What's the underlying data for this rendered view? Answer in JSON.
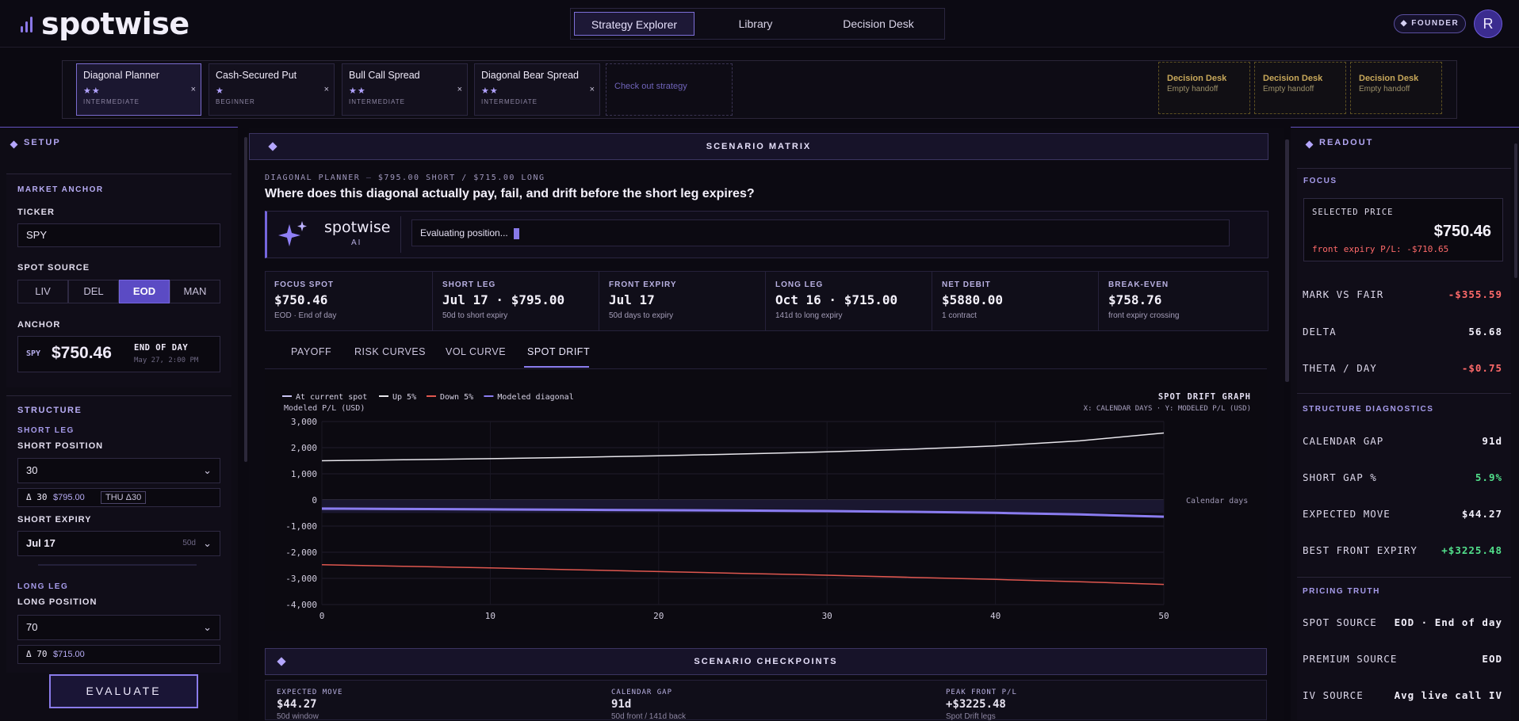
{
  "app": {
    "name": "spotwise"
  },
  "nav": {
    "tabs": [
      "Strategy Explorer",
      "Library",
      "Decision Desk"
    ],
    "active": "Strategy Explorer"
  },
  "account": {
    "badge": "◆ FOUNDER",
    "avatar": "R"
  },
  "strategies": [
    {
      "name": "Diagonal Planner",
      "stars": "★★",
      "level": "INTERMEDIATE",
      "active": true
    },
    {
      "name": "Cash-Secured Put",
      "stars": "★",
      "level": "BEGINNER"
    },
    {
      "name": "Bull Call Spread",
      "stars": "★★",
      "level": "INTERMEDIATE"
    },
    {
      "name": "Diagonal Bear Spread",
      "stars": "★★",
      "level": "INTERMEDIATE"
    }
  ],
  "strip": {
    "close_glyph": "×",
    "add_label": "Check out strategy",
    "handoffs": [
      {
        "title": "Decision Desk",
        "sub": "Empty handoff"
      },
      {
        "title": "Decision Desk",
        "sub": "Empty handoff"
      },
      {
        "title": "Decision Desk",
        "sub": "Empty handoff"
      }
    ]
  },
  "setup": {
    "title": "SETUP",
    "market_anchor": {
      "title": "MARKET ANCHOR",
      "ticker_label": "TICKER",
      "ticker_value": "SPY",
      "spot_source_label": "SPOT SOURCE",
      "spot_sources": [
        "LIV",
        "DEL",
        "EOD",
        "MAN"
      ],
      "spot_source_active": "EOD",
      "anchor_label": "ANCHOR",
      "anchor_ticker": "SPY",
      "anchor_price": "$750.46",
      "anchor_note": "END OF DAY",
      "anchor_time": "May 27, 2:00 PM"
    },
    "structure": {
      "title": "STRUCTURE",
      "short_leg_label": "SHORT LEG",
      "short_position_label": "SHORT POSITION",
      "short_position_value": "30",
      "short_delta": "Δ 30",
      "short_strike": "$795.00",
      "short_tag": "THU Δ30",
      "short_expiry_label": "SHORT EXPIRY",
      "short_expiry_value": "Jul 17",
      "short_expiry_days": "50d",
      "long_leg_label": "LONG LEG",
      "long_position_label": "LONG POSITION",
      "long_position_value": "70",
      "long_delta": "Δ 70",
      "long_strike": "$715.00"
    },
    "evaluate_label": "EVALUATE"
  },
  "center": {
    "matrix_title": "SCENARIO MATRIX",
    "crumb_name": "DIAGONAL PLANNER",
    "crumb_detail": "$795.00 SHORT / $715.00 LONG",
    "question": "Where does this diagonal actually pay, fail, and drift before the short leg expires?",
    "ai_brand": "spotwise",
    "ai_sub": "AI",
    "ai_status": "Evaluating position...",
    "metrics": [
      {
        "k": "FOCUS SPOT",
        "v": "$750.46",
        "d": "EOD · End of day"
      },
      {
        "k": "SHORT LEG",
        "v": "Jul 17 · $795.00",
        "d": "50d to short expiry"
      },
      {
        "k": "FRONT EXPIRY",
        "v": "Jul 17",
        "d": "50d days to expiry"
      },
      {
        "k": "LONG LEG",
        "v": "Oct 16 · $715.00",
        "d": "141d to long expiry"
      },
      {
        "k": "NET DEBIT",
        "v": "$5880.00",
        "d": "1 contract"
      },
      {
        "k": "BREAK-EVEN",
        "v": "$758.76",
        "d": "front expiry crossing"
      }
    ],
    "tabs": [
      "PAYOFF",
      "RISK CURVES",
      "VOL CURVE",
      "SPOT DRIFT"
    ],
    "active_tab": "SPOT DRIFT",
    "checkpoints_title": "SCENARIO CHECKPOINTS",
    "checkpoints": [
      {
        "k": "EXPECTED MOVE",
        "v": "$44.27",
        "d": "50d window"
      },
      {
        "k": "CALENDAR GAP",
        "v": "91d",
        "d": "50d front / 141d back"
      },
      {
        "k": "PEAK FRONT P/L",
        "v": "+$3225.48",
        "d": "Spot Drift legs"
      }
    ]
  },
  "chart_data": {
    "type": "line",
    "title": "SPOT DRIFT GRAPH",
    "subtitle": "X: CALENDAR DAYS · Y: MODELED P/L (USD)",
    "ylabel": "Modeled P/L (USD)",
    "xlabel": "Calendar days",
    "xlim": [
      0,
      50
    ],
    "ylim": [
      -4000,
      3000
    ],
    "xticks": [
      0,
      10,
      20,
      30,
      40,
      50
    ],
    "yticks": [
      3000,
      2000,
      1000,
      0,
      -1000,
      -2000,
      -3000,
      -4000
    ],
    "ytick_labels": [
      "3,000",
      "2,000",
      "1,000",
      "0",
      "-1,000",
      "-2,000",
      "-3,000",
      "-4,000"
    ],
    "grid": true,
    "legend_position": "top-left",
    "legend": [
      "At current spot",
      "Up 5%",
      "Down 5%",
      "Modeled diagonal"
    ],
    "x": [
      0,
      5,
      10,
      15,
      20,
      25,
      30,
      35,
      40,
      45,
      50
    ],
    "series": [
      {
        "name": "At current spot",
        "color": "#c9c4f2",
        "values": [
          -350,
          -360,
          -370,
          -385,
          -400,
          -410,
          -430,
          -460,
          -500,
          -560,
          -650
        ]
      },
      {
        "name": "Up 5%",
        "color": "#e8e6ec",
        "values": [
          1500,
          1540,
          1580,
          1630,
          1690,
          1760,
          1840,
          1940,
          2070,
          2260,
          2560
        ]
      },
      {
        "name": "Down 5%",
        "color": "#e0574f",
        "values": [
          -2480,
          -2540,
          -2600,
          -2670,
          -2740,
          -2810,
          -2880,
          -2960,
          -3040,
          -3130,
          -3230
        ]
      },
      {
        "name": "Modeled diagonal",
        "color": "#8a7cf0",
        "values": [
          -330,
          -345,
          -360,
          -375,
          -390,
          -405,
          -425,
          -455,
          -495,
          -555,
          -640
        ]
      }
    ]
  },
  "readout": {
    "title": "READOUT",
    "focus_title": "FOCUS",
    "selected_price_label": "SELECTED PRICE",
    "selected_price": "$750.46",
    "front_pl_label": "front expiry P/L:",
    "front_pl": "-$710.65",
    "rows1": [
      {
        "k": "MARK VS FAIR",
        "v": "-$355.59",
        "tone": "neg"
      },
      {
        "k": "DELTA",
        "v": "56.68",
        "tone": ""
      },
      {
        "k": "THETA / DAY",
        "v": "-$0.75",
        "tone": "neg"
      }
    ],
    "diag_title": "STRUCTURE DIAGNOSTICS",
    "rows2": [
      {
        "k": "CALENDAR GAP",
        "v": "91d",
        "tone": ""
      },
      {
        "k": "SHORT GAP %",
        "v": "5.9%",
        "tone": "pos"
      },
      {
        "k": "EXPECTED MOVE",
        "v": "$44.27",
        "tone": ""
      },
      {
        "k": "BEST FRONT EXPIRY",
        "v": "+$3225.48",
        "tone": "pos"
      }
    ],
    "pricing_title": "PRICING TRUTH",
    "rows3": [
      {
        "k": "SPOT SOURCE",
        "v": "EOD · End of day",
        "tone": ""
      },
      {
        "k": "PREMIUM SOURCE",
        "v": "EOD",
        "tone": ""
      },
      {
        "k": "IV SOURCE",
        "v": "Avg live call IV",
        "tone": ""
      }
    ]
  },
  "colors": {
    "accent": "#7d6fd8",
    "negative": "#ff6a6a",
    "positive": "#52e08b",
    "bg": "#0b0911"
  }
}
